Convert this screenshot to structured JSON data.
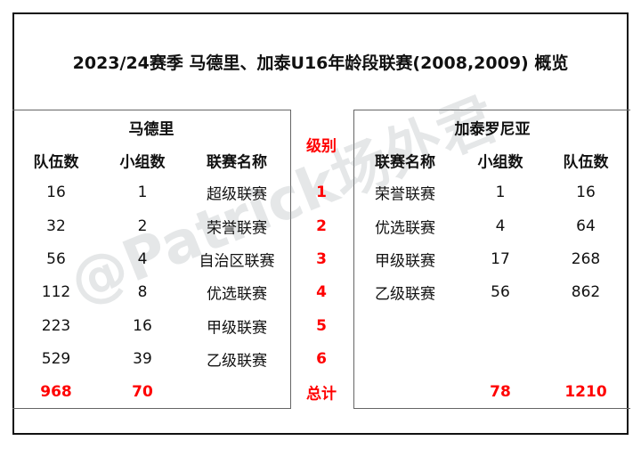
{
  "title": "2023/24赛季 马德里、加泰U16年龄段联赛(2008,2009) 概览",
  "watermark": "@Patrick场外君",
  "madrid": {
    "name": "马德里",
    "headers": [
      "队伍数",
      "小组数",
      "联赛名称"
    ],
    "rows": [
      [
        "16",
        "1",
        "超级联赛"
      ],
      [
        "32",
        "2",
        "荣誉联赛"
      ],
      [
        "56",
        "4",
        "自治区联赛"
      ],
      [
        "112",
        "8",
        "优选联赛"
      ],
      [
        "223",
        "16",
        "甲级联赛"
      ],
      [
        "529",
        "39",
        "乙级联赛"
      ]
    ],
    "total": [
      "968",
      "70"
    ]
  },
  "levels": {
    "header": "级别",
    "items": [
      "1",
      "2",
      "3",
      "4",
      "5",
      "6"
    ],
    "total_label": "总计"
  },
  "catalonia": {
    "name": "加泰罗尼亚",
    "headers": [
      "联赛名称",
      "小组数",
      "队伍数"
    ],
    "rows": [
      [
        "荣誉联赛",
        "1",
        "16"
      ],
      [
        "优选联赛",
        "4",
        "64"
      ],
      [
        "甲级联赛",
        "17",
        "268"
      ],
      [
        "乙级联赛",
        "56",
        "862"
      ]
    ],
    "total": [
      "78",
      "1210"
    ]
  },
  "colors": {
    "highlight": "#ff0000",
    "text": "#111111"
  }
}
